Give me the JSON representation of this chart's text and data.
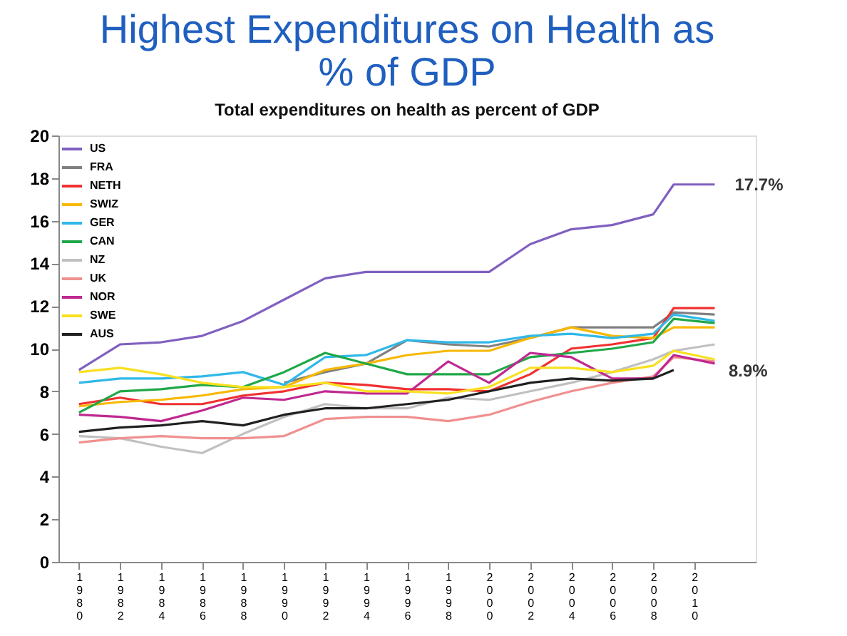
{
  "chart_data": {
    "type": "line",
    "title": [
      "Highest Expenditures on Health as",
      "% of GDP"
    ],
    "subtitle": "Total expenditures on health as percent of GDP",
    "x": [
      1980,
      1982,
      1984,
      1986,
      1988,
      1990,
      1992,
      1994,
      1996,
      1998,
      2000,
      2002,
      2004,
      2006,
      2008,
      2009,
      2011
    ],
    "xlim": [
      1979,
      2013
    ],
    "xticks": [
      1980,
      1982,
      1984,
      1986,
      1988,
      1990,
      1992,
      1994,
      1996,
      1998,
      2000,
      2002,
      2004,
      2006,
      2008,
      2010
    ],
    "ylim": [
      0,
      20
    ],
    "yticks": [
      0,
      2,
      4,
      6,
      8,
      10,
      12,
      14,
      16,
      18,
      20
    ],
    "grid": false,
    "legend": "top left",
    "marker": "none",
    "line_style": "solid",
    "series": [
      {
        "name": "US",
        "color": "#8060c0",
        "values": [
          9.0,
          10.2,
          10.3,
          10.6,
          11.3,
          12.3,
          13.3,
          13.6,
          13.6,
          13.6,
          13.6,
          14.9,
          15.6,
          15.8,
          16.3,
          17.7,
          17.7
        ]
      },
      {
        "name": "FRA",
        "color": "#808080",
        "values": [
          null,
          null,
          null,
          null,
          null,
          8.4,
          8.9,
          9.3,
          10.4,
          10.2,
          10.1,
          10.5,
          11.0,
          11.0,
          11.0,
          11.7,
          11.6
        ]
      },
      {
        "name": "NETH",
        "color": "#f03030",
        "values": [
          7.4,
          7.7,
          7.4,
          7.4,
          7.8,
          8.0,
          8.4,
          8.3,
          8.1,
          8.1,
          8.0,
          8.8,
          10.0,
          10.2,
          10.5,
          11.9,
          11.9
        ]
      },
      {
        "name": "SWIZ",
        "color": "#f8b800",
        "values": [
          7.3,
          7.5,
          7.6,
          7.8,
          8.1,
          8.2,
          9.0,
          9.3,
          9.7,
          9.9,
          9.9,
          10.5,
          11.0,
          10.6,
          10.5,
          11.0,
          11.0
        ]
      },
      {
        "name": "GER",
        "color": "#30b8e8",
        "values": [
          8.4,
          8.6,
          8.6,
          8.7,
          8.9,
          8.3,
          9.6,
          9.7,
          10.4,
          10.3,
          10.3,
          10.6,
          10.7,
          10.5,
          10.7,
          11.6,
          11.3
        ]
      },
      {
        "name": "CAN",
        "color": "#20a848",
        "values": [
          7.0,
          8.0,
          8.1,
          8.3,
          8.2,
          8.9,
          9.8,
          9.3,
          8.8,
          8.8,
          8.8,
          9.6,
          9.8,
          10.0,
          10.3,
          11.4,
          11.2
        ]
      },
      {
        "name": "NZ",
        "color": "#c0c0c0",
        "values": [
          5.9,
          5.8,
          5.4,
          5.1,
          6.0,
          6.8,
          7.4,
          7.2,
          7.2,
          7.7,
          7.6,
          8.0,
          8.4,
          8.9,
          9.5,
          9.9,
          10.2
        ]
      },
      {
        "name": "UK",
        "color": "#f09090",
        "values": [
          5.6,
          5.8,
          5.9,
          5.8,
          5.8,
          5.9,
          6.7,
          6.8,
          6.8,
          6.6,
          6.9,
          7.5,
          8.0,
          8.4,
          8.7,
          9.6,
          9.4
        ]
      },
      {
        "name": "NOR",
        "color": "#c02890",
        "values": [
          6.9,
          6.8,
          6.6,
          7.1,
          7.7,
          7.6,
          8.0,
          7.9,
          7.9,
          9.4,
          8.4,
          9.8,
          9.6,
          8.6,
          8.6,
          9.7,
          9.3
        ]
      },
      {
        "name": "SWE",
        "color": "#f8e020",
        "values": [
          8.9,
          9.1,
          8.8,
          8.4,
          8.2,
          8.2,
          8.4,
          8.0,
          8.0,
          7.9,
          8.2,
          9.1,
          9.1,
          8.9,
          9.2,
          9.9,
          9.5
        ]
      },
      {
        "name": "AUS",
        "color": "#202020",
        "values": [
          6.1,
          6.3,
          6.4,
          6.6,
          6.4,
          6.9,
          7.2,
          7.2,
          7.4,
          7.6,
          8.0,
          8.4,
          8.6,
          8.5,
          8.6,
          9.0,
          null
        ]
      }
    ],
    "annotations": [
      {
        "text": "17.7%",
        "x": 2011,
        "y": 17.7
      },
      "8.9%"
    ]
  }
}
